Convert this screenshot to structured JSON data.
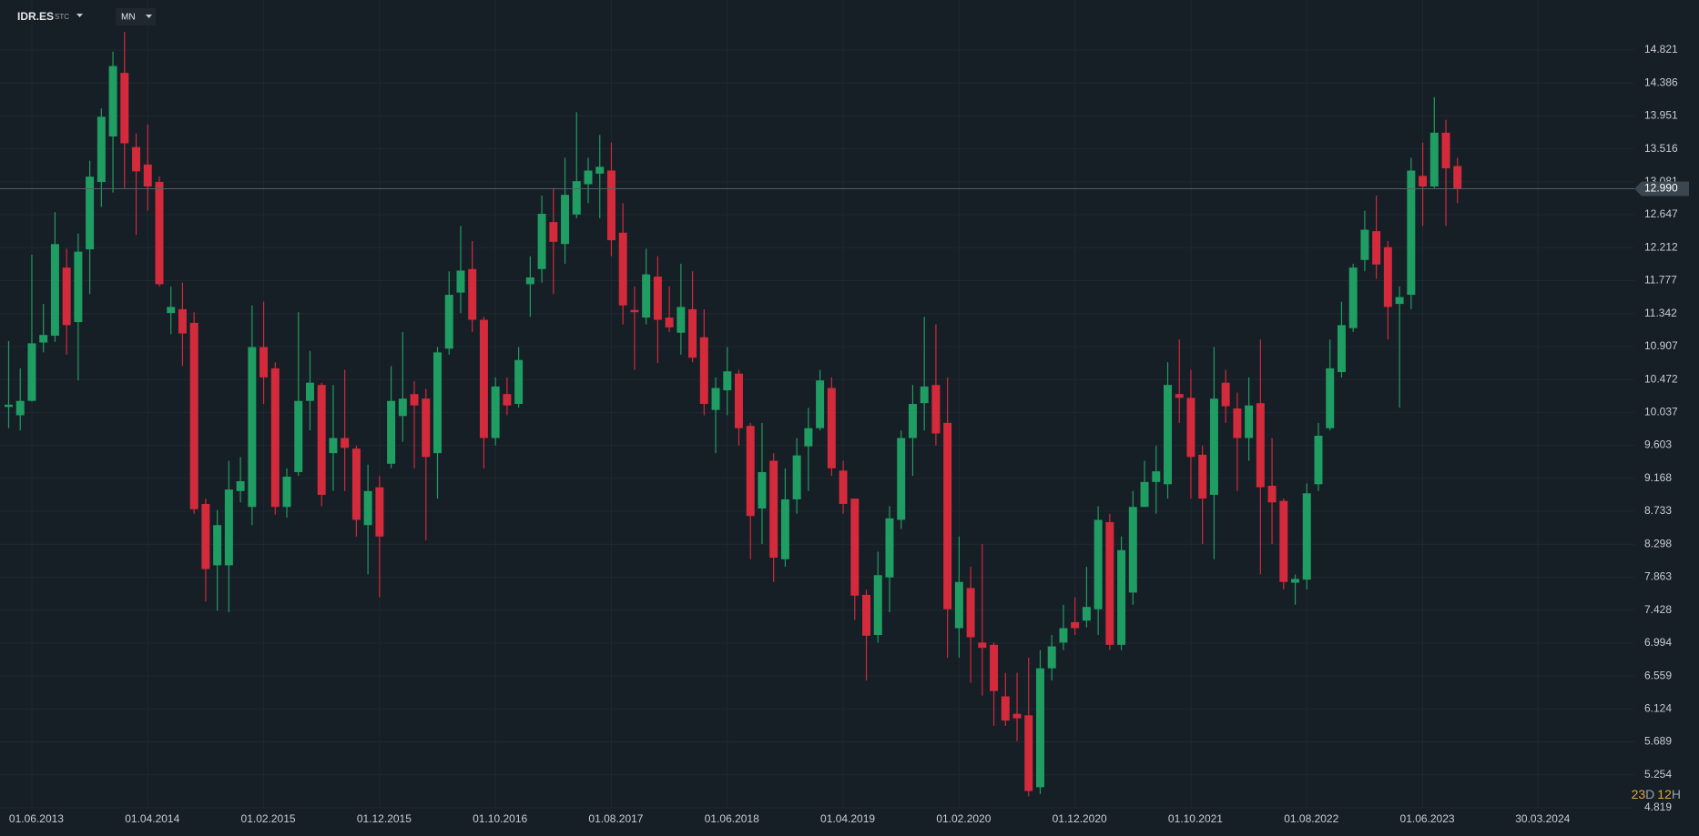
{
  "header": {
    "symbol": "IDR.ES",
    "exchange": "STC",
    "interval": "MN"
  },
  "countdown": [
    "23",
    "D",
    "12",
    "H"
  ],
  "chart_data": {
    "type": "candlestick",
    "dates": [
      "01.04.2013",
      "01.05.2013",
      "01.06.2013",
      "01.07.2013",
      "01.08.2013",
      "01.09.2013",
      "01.10.2013",
      "01.11.2013",
      "01.12.2013",
      "01.01.2014",
      "01.02.2014",
      "01.03.2014",
      "01.04.2014",
      "01.05.2014",
      "01.06.2014",
      "01.07.2014",
      "01.08.2014",
      "01.09.2014",
      "01.10.2014",
      "01.11.2014",
      "01.12.2014",
      "01.01.2015",
      "01.02.2015",
      "01.03.2015",
      "01.04.2015",
      "01.05.2015",
      "01.06.2015",
      "01.07.2015",
      "01.08.2015",
      "01.09.2015",
      "01.10.2015",
      "01.11.2015",
      "01.12.2015",
      "01.01.2016",
      "01.02.2016",
      "01.03.2016",
      "01.04.2016",
      "01.05.2016",
      "01.06.2016",
      "01.07.2016",
      "01.08.2016",
      "01.09.2016",
      "01.10.2016",
      "01.11.2016",
      "01.12.2016",
      "01.01.2017",
      "01.02.2017",
      "01.03.2017",
      "01.04.2017",
      "01.05.2017",
      "01.06.2017",
      "01.07.2017",
      "01.08.2017",
      "01.09.2017",
      "01.10.2017",
      "01.11.2017",
      "01.12.2017",
      "01.01.2018",
      "01.02.2018",
      "01.03.2018",
      "01.04.2018",
      "01.05.2018",
      "01.06.2018",
      "01.07.2018",
      "01.08.2018",
      "01.09.2018",
      "01.10.2018",
      "01.11.2018",
      "01.12.2018",
      "01.01.2019",
      "01.02.2019",
      "01.03.2019",
      "01.04.2019",
      "01.05.2019",
      "01.06.2019",
      "01.07.2019",
      "01.08.2019",
      "01.09.2019",
      "01.10.2019",
      "01.11.2019",
      "01.12.2019",
      "01.01.2020",
      "01.02.2020",
      "01.03.2020",
      "01.04.2020",
      "01.05.2020",
      "01.06.2020",
      "01.07.2020",
      "01.08.2020",
      "01.09.2020",
      "01.10.2020",
      "01.11.2020",
      "01.12.2020",
      "01.01.2021",
      "01.02.2021",
      "01.03.2021",
      "01.04.2021",
      "01.05.2021",
      "01.06.2021",
      "01.07.2021",
      "01.08.2021",
      "01.09.2021",
      "01.10.2021",
      "01.11.2021",
      "01.12.2021",
      "01.01.2022",
      "01.02.2022",
      "01.03.2022",
      "01.04.2022",
      "01.05.2022",
      "01.06.2022",
      "01.07.2022",
      "01.08.2022",
      "01.09.2022",
      "01.10.2022",
      "01.11.2022",
      "01.12.2022",
      "01.01.2023",
      "01.02.2023",
      "01.03.2023",
      "01.04.2023",
      "01.05.2023",
      "01.06.2023",
      "01.07.2023",
      "01.08.2023",
      "01.09.2023"
    ],
    "open": [
      10.11,
      10.0,
      10.19,
      10.96,
      11.05,
      11.95,
      11.23,
      12.19,
      13.08,
      13.68,
      14.52,
      13.54,
      13.31,
      13.08,
      11.35,
      11.4,
      11.22,
      8.83,
      8.02,
      8.02,
      9.0,
      8.79,
      10.9,
      10.62,
      8.79,
      9.25,
      10.19,
      10.4,
      9.5,
      9.7,
      9.56,
      8.55,
      9.05,
      9.36,
      9.99,
      10.28,
      10.22,
      9.5,
      10.88,
      11.62,
      11.93,
      11.26,
      9.7,
      10.28,
      10.15,
      11.73,
      11.93,
      12.55,
      12.26,
      12.65,
      13.05,
      13.19,
      13.23,
      12.41,
      11.39,
      11.29,
      11.83,
      11.29,
      11.09,
      11.4,
      11.03,
      10.07,
      10.33,
      10.55,
      9.86,
      8.77,
      9.4,
      8.1,
      8.89,
      9.59,
      9.83,
      10.36,
      9.27,
      8.9,
      7.63,
      7.1,
      7.86,
      8.62,
      9.7,
      10.16,
      10.4,
      9.9,
      7.19,
      7.72,
      7.0,
      6.97,
      6.29,
      6.06,
      6.04,
      5.09,
      6.66,
      7.0,
      7.27,
      7.29,
      7.44,
      8.59,
      6.97,
      7.66,
      8.79,
      9.12,
      9.09,
      10.28,
      10.23,
      9.48,
      8.95,
      10.43,
      10.09,
      9.7,
      10.16,
      9.07,
      8.87,
      7.79,
      7.83,
      9.09,
      9.83,
      10.57,
      11.15,
      12.05,
      12.43,
      12.22,
      11.47,
      11.59,
      13.16,
      13.02,
      13.73,
      13.29
    ],
    "high": [
      10.98,
      10.62,
      12.12,
      11.47,
      12.68,
      12.2,
      12.4,
      13.36,
      14.05,
      14.8,
      15.06,
      13.72,
      13.84,
      13.15,
      11.7,
      11.75,
      11.36,
      8.9,
      8.75,
      9.4,
      9.45,
      11.45,
      11.5,
      10.7,
      9.3,
      11.36,
      10.85,
      10.43,
      10.4,
      10.6,
      9.6,
      9.35,
      9.2,
      10.65,
      11.1,
      10.45,
      10.35,
      10.9,
      11.9,
      12.5,
      12.3,
      11.3,
      10.5,
      10.5,
      10.9,
      12.1,
      12.9,
      13.0,
      13.4,
      14.0,
      13.4,
      13.7,
      13.6,
      12.8,
      11.7,
      12.2,
      12.1,
      11.7,
      12.0,
      11.9,
      11.4,
      10.5,
      10.9,
      10.6,
      9.9,
      9.9,
      9.5,
      9.3,
      9.7,
      10.1,
      10.6,
      10.5,
      9.4,
      8.9,
      7.7,
      8.2,
      8.8,
      9.8,
      10.4,
      11.3,
      11.2,
      10.5,
      8.4,
      8.0,
      8.3,
      7.0,
      6.6,
      6.6,
      6.8,
      6.9,
      7.1,
      7.5,
      7.6,
      8.0,
      8.8,
      8.7,
      8.4,
      9.0,
      9.4,
      9.6,
      10.7,
      11.0,
      10.6,
      9.6,
      10.9,
      10.6,
      10.3,
      10.5,
      11.0,
      9.7,
      8.9,
      7.9,
      9.1,
      9.9,
      11.0,
      11.5,
      12.0,
      12.7,
      12.9,
      12.3,
      11.7,
      13.4,
      13.6,
      14.2,
      13.9,
      13.4
    ],
    "low": [
      9.83,
      9.8,
      10.18,
      10.83,
      10.97,
      10.8,
      10.46,
      11.6,
      12.75,
      12.94,
      13.0,
      12.38,
      12.7,
      11.7,
      11.07,
      10.65,
      8.7,
      7.54,
      7.42,
      7.4,
      8.85,
      8.55,
      10.15,
      8.69,
      8.65,
      9.2,
      9.8,
      8.8,
      9.0,
      9.0,
      8.4,
      7.9,
      7.6,
      9.3,
      9.65,
      9.3,
      8.35,
      8.9,
      10.8,
      11.35,
      11.1,
      9.3,
      9.6,
      10.0,
      10.1,
      11.3,
      11.75,
      11.6,
      12.0,
      12.6,
      12.8,
      12.6,
      12.1,
      11.2,
      10.6,
      11.2,
      10.69,
      11.1,
      10.8,
      10.7,
      10.0,
      9.5,
      10.0,
      9.6,
      8.1,
      8.3,
      7.8,
      8.0,
      8.7,
      9.0,
      9.8,
      9.2,
      8.7,
      7.3,
      6.5,
      7.0,
      7.4,
      8.5,
      9.2,
      9.8,
      9.6,
      6.8,
      6.8,
      6.47,
      6.3,
      5.9,
      5.9,
      5.7,
      4.97,
      5.0,
      6.5,
      6.9,
      7.1,
      7.2,
      7.1,
      6.9,
      6.9,
      7.5,
      8.8,
      8.7,
      8.9,
      9.9,
      8.9,
      8.3,
      8.1,
      9.9,
      9.0,
      9.4,
      7.9,
      8.3,
      7.7,
      7.5,
      7.7,
      9.0,
      9.8,
      10.5,
      11.1,
      11.9,
      11.8,
      11.0,
      10.1,
      11.4,
      12.5,
      13.0,
      12.5,
      12.8
    ],
    "close": [
      10.14,
      10.19,
      10.95,
      11.06,
      12.26,
      11.19,
      12.16,
      13.15,
      13.94,
      14.61,
      13.59,
      13.22,
      13.02,
      11.73,
      11.43,
      11.08,
      8.76,
      7.97,
      8.55,
      9.02,
      9.13,
      10.9,
      10.5,
      8.79,
      9.19,
      10.19,
      10.43,
      8.95,
      9.7,
      9.57,
      8.62,
      9.0,
      8.4,
      10.19,
      10.22,
      10.13,
      9.45,
      10.83,
      11.59,
      11.91,
      11.26,
      9.7,
      10.38,
      10.13,
      10.73,
      11.82,
      12.66,
      12.29,
      12.91,
      13.09,
      13.23,
      13.28,
      12.31,
      11.45,
      11.36,
      11.86,
      11.26,
      11.16,
      11.43,
      10.76,
      10.15,
      10.36,
      10.58,
      9.83,
      8.67,
      9.25,
      8.12,
      8.89,
      9.47,
      9.83,
      10.46,
      9.3,
      8.83,
      7.62,
      7.09,
      7.89,
      8.64,
      9.7,
      10.15,
      10.38,
      9.76,
      7.44,
      7.8,
      7.07,
      6.93,
      6.36,
      5.97,
      6.0,
      5.04,
      6.66,
      6.95,
      7.19,
      7.19,
      7.47,
      8.62,
      6.97,
      8.22,
      8.79,
      9.12,
      9.26,
      10.4,
      10.23,
      9.45,
      8.9,
      10.22,
      10.12,
      9.7,
      10.13,
      9.05,
      8.85,
      7.8,
      7.84,
      8.97,
      9.73,
      10.62,
      11.19,
      11.95,
      12.45,
      11.99,
      11.43,
      11.56,
      13.23,
      13.02,
      13.73,
      13.26,
      12.99
    ],
    "up_color": "#1f9d62",
    "down_color": "#d32a3c",
    "last_price": 12.99,
    "last_price_label": "12.990",
    "ylim": [
      4.819,
      14.821
    ],
    "yticks": [
      14.821,
      14.386,
      13.951,
      13.516,
      13.081,
      12.647,
      12.212,
      11.777,
      11.342,
      10.907,
      10.472,
      10.037,
      9.603,
      9.168,
      8.733,
      8.298,
      7.863,
      7.428,
      6.994,
      6.559,
      6.124,
      5.689,
      5.254,
      4.819
    ],
    "xticks": [
      "01.06.2013",
      "01.04.2014",
      "01.02.2015",
      "01.12.2015",
      "01.10.2016",
      "01.08.2017",
      "01.06.2018",
      "01.04.2019",
      "01.02.2020",
      "01.12.2020",
      "01.10.2021",
      "01.08.2022",
      "01.06.2023",
      "30.03.2024"
    ],
    "grid": true
  }
}
